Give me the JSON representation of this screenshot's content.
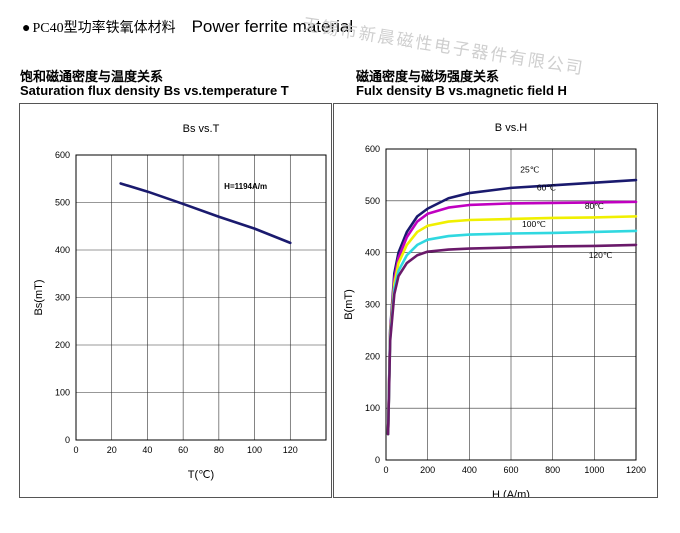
{
  "header": {
    "bullet": "●",
    "cn_title": "PC40型功率铁氧体材料",
    "en_title": "Power ferrite material",
    "watermark": "无锡市新晨磁性电子器件有限公司"
  },
  "left_panel": {
    "title_cn": "饱和磁通密度与温度关系",
    "title_en": "Saturation flux density Bs vs.temperature T"
  },
  "right_panel": {
    "title_cn": "磁通密度与磁场强度关系",
    "title_en": "Fulx density B vs.magnetic field H"
  },
  "chart_data": [
    {
      "type": "line",
      "title": "Bs vs.T",
      "xlabel": "T(℃)",
      "ylabel": "Bs(mT)",
      "xlim": [
        0,
        140
      ],
      "ylim": [
        0,
        600
      ],
      "x_ticks": [
        0,
        20,
        40,
        60,
        80,
        100,
        120
      ],
      "y_ticks": [
        0,
        100,
        200,
        300,
        400,
        500,
        600
      ],
      "grid": true,
      "annotation": "H=1194A/m",
      "series": [
        {
          "x": [
            25,
            40,
            60,
            80,
            100,
            120
          ],
          "y": [
            540,
            523,
            497,
            470,
            445,
            415
          ],
          "color": "#1a1a6e"
        }
      ]
    },
    {
      "type": "line",
      "title": "B vs.H",
      "xlabel": "H (A/m)",
      "ylabel": "B(mT)",
      "xlim": [
        0,
        1200
      ],
      "ylim": [
        0,
        600
      ],
      "x_ticks": [
        0,
        200,
        400,
        600,
        800,
        1000,
        1200
      ],
      "y_ticks": [
        0,
        100,
        200,
        300,
        400,
        500,
        600
      ],
      "grid": true,
      "series": [
        {
          "name": "25℃",
          "color": "#1a1a6e",
          "x": [
            10,
            20,
            40,
            60,
            100,
            150,
            200,
            300,
            400,
            600,
            800,
            1000,
            1200
          ],
          "y": [
            50,
            250,
            360,
            400,
            440,
            470,
            485,
            505,
            515,
            525,
            530,
            535,
            540
          ]
        },
        {
          "name": "60℃",
          "color": "#c000c0",
          "x": [
            10,
            20,
            40,
            60,
            100,
            150,
            200,
            300,
            400,
            600,
            800,
            1000,
            1200
          ],
          "y": [
            50,
            245,
            350,
            390,
            430,
            460,
            475,
            487,
            492,
            495,
            496,
            497,
            498
          ]
        },
        {
          "name": "80℃",
          "color": "#f0f000",
          "x": [
            10,
            20,
            40,
            60,
            100,
            150,
            200,
            300,
            400,
            600,
            800,
            1000,
            1200
          ],
          "y": [
            50,
            240,
            340,
            380,
            415,
            440,
            452,
            460,
            463,
            465,
            467,
            468,
            470
          ]
        },
        {
          "name": "100℃",
          "color": "#30d8e0",
          "x": [
            10,
            20,
            40,
            60,
            100,
            150,
            200,
            300,
            400,
            600,
            800,
            1000,
            1200
          ],
          "y": [
            50,
            235,
            330,
            365,
            395,
            415,
            425,
            432,
            435,
            437,
            438,
            440,
            442
          ]
        },
        {
          "name": "120℃",
          "color": "#6a1a6a",
          "x": [
            10,
            20,
            40,
            60,
            100,
            150,
            200,
            300,
            400,
            600,
            800,
            1000,
            1200
          ],
          "y": [
            50,
            230,
            320,
            355,
            380,
            395,
            402,
            406,
            408,
            410,
            412,
            413,
            415
          ]
        }
      ]
    }
  ]
}
